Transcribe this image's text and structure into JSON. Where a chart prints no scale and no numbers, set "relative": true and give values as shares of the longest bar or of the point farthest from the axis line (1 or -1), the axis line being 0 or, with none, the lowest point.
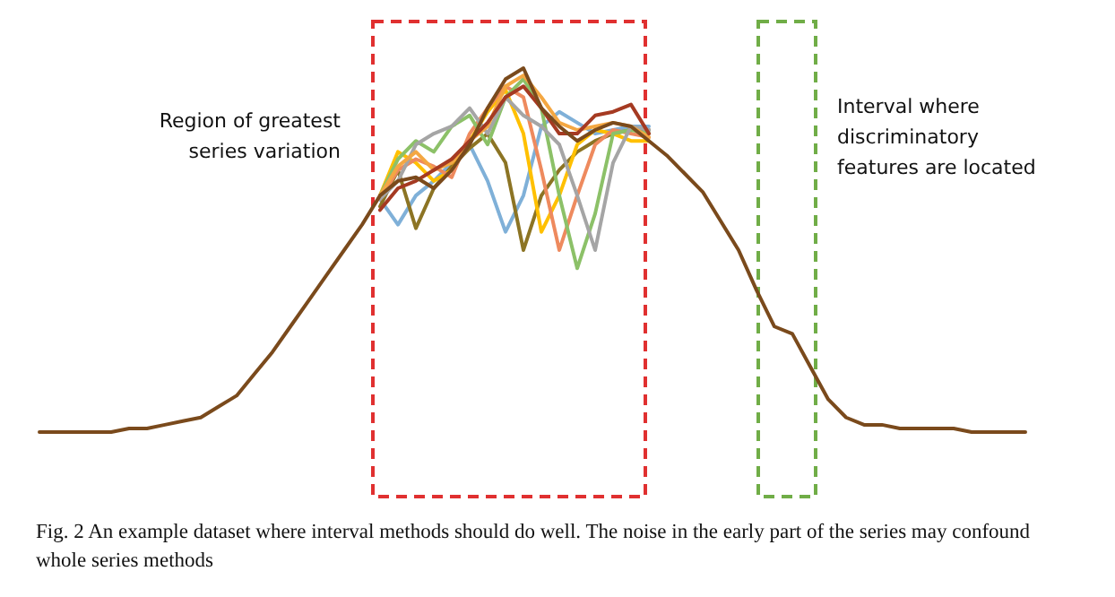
{
  "chart_data": {
    "type": "line",
    "relative": true,
    "tick_labels": false,
    "grid": false,
    "marker": "none",
    "line_style": "solid",
    "categories": [
      null,
      null,
      null,
      null,
      null,
      null,
      null,
      null,
      null,
      null,
      null,
      null,
      null,
      null,
      null,
      null,
      null,
      null,
      null,
      null,
      null,
      null,
      null,
      null,
      null,
      null,
      null,
      null,
      null,
      null,
      null,
      null,
      null,
      null,
      null,
      null,
      null,
      null,
      null,
      null,
      null,
      null,
      null,
      null,
      null,
      null,
      null,
      null,
      null,
      null,
      null,
      null,
      null,
      null,
      null,
      null
    ],
    "series": [
      {
        "color": "#7fb0d8",
        "values": [
          null,
          null,
          null,
          null,
          null,
          null,
          null,
          null,
          null,
          null,
          null,
          null,
          null,
          null,
          null,
          null,
          null,
          null,
          null,
          0.64,
          0.57,
          0.65,
          0.69,
          0.74,
          0.79,
          0.69,
          0.55,
          0.65,
          0.84,
          0.88,
          0.85,
          0.82,
          0.83,
          0.84,
          0.84,
          null,
          null,
          null,
          null,
          null,
          null,
          null,
          null,
          null,
          null,
          null,
          null,
          null,
          null,
          null,
          null,
          null,
          null,
          null,
          null,
          null
        ]
      },
      {
        "color": "#8c7424",
        "values": [
          null,
          null,
          null,
          null,
          null,
          null,
          null,
          null,
          null,
          null,
          null,
          null,
          null,
          null,
          null,
          null,
          null,
          null,
          null,
          0.62,
          0.72,
          0.56,
          0.67,
          0.73,
          0.78,
          0.82,
          0.74,
          0.5,
          0.65,
          0.72,
          0.77,
          0.8,
          0.82,
          0.83,
          0.83,
          null,
          null,
          null,
          null,
          null,
          null,
          null,
          null,
          null,
          null,
          null,
          null,
          null,
          null,
          null,
          null,
          null,
          null,
          null,
          null,
          null
        ]
      },
      {
        "color": "#ffc000",
        "values": [
          null,
          null,
          null,
          null,
          null,
          null,
          null,
          null,
          null,
          null,
          null,
          null,
          null,
          null,
          null,
          null,
          null,
          null,
          null,
          0.65,
          0.77,
          0.74,
          0.69,
          0.72,
          0.8,
          0.88,
          0.94,
          0.82,
          0.55,
          0.65,
          0.79,
          0.83,
          0.82,
          0.8,
          0.8,
          null,
          null,
          null,
          null,
          null,
          null,
          null,
          null,
          null,
          null,
          null,
          null,
          null,
          null,
          null,
          null,
          null,
          null,
          null,
          null,
          null
        ]
      },
      {
        "color": "#ee8a5e",
        "values": [
          null,
          null,
          null,
          null,
          null,
          null,
          null,
          null,
          null,
          null,
          null,
          null,
          null,
          null,
          null,
          null,
          null,
          null,
          null,
          0.64,
          0.72,
          0.75,
          0.73,
          0.7,
          0.82,
          0.89,
          0.95,
          0.92,
          0.72,
          0.5,
          0.65,
          0.79,
          0.83,
          0.82,
          0.81,
          null,
          null,
          null,
          null,
          null,
          null,
          null,
          null,
          null,
          null,
          null,
          null,
          null,
          null,
          null,
          null,
          null,
          null,
          null,
          null,
          null
        ]
      },
      {
        "color": "#8cc168",
        "values": [
          null,
          null,
          null,
          null,
          null,
          null,
          null,
          null,
          null,
          null,
          null,
          null,
          null,
          null,
          null,
          null,
          null,
          null,
          null,
          0.65,
          0.75,
          0.8,
          0.77,
          0.84,
          0.87,
          0.79,
          0.92,
          0.97,
          0.89,
          0.65,
          0.45,
          0.6,
          0.82,
          0.83,
          0.82,
          null,
          null,
          null,
          null,
          null,
          null,
          null,
          null,
          null,
          null,
          null,
          null,
          null,
          null,
          null,
          null,
          null,
          null,
          null,
          null,
          null
        ]
      },
      {
        "color": "#a5a5a5",
        "values": [
          null,
          null,
          null,
          null,
          null,
          null,
          null,
          null,
          null,
          null,
          null,
          null,
          null,
          null,
          null,
          null,
          null,
          null,
          null,
          0.64,
          0.69,
          0.79,
          0.82,
          0.84,
          0.89,
          0.82,
          0.92,
          0.87,
          0.84,
          0.79,
          0.65,
          0.5,
          0.74,
          0.84,
          0.83,
          null,
          null,
          null,
          null,
          null,
          null,
          null,
          null,
          null,
          null,
          null,
          null,
          null,
          null,
          null,
          null,
          null,
          null,
          null,
          null,
          null
        ]
      },
      {
        "color": "#f4a742",
        "values": [
          null,
          null,
          null,
          null,
          null,
          null,
          null,
          null,
          null,
          null,
          null,
          null,
          null,
          null,
          null,
          null,
          null,
          null,
          null,
          0.65,
          0.73,
          0.77,
          0.72,
          0.74,
          0.8,
          0.84,
          0.95,
          0.98,
          0.92,
          0.85,
          0.83,
          0.84,
          0.85,
          0.84,
          0.81,
          null,
          null,
          null,
          null,
          null,
          null,
          null,
          null,
          null,
          null,
          null,
          null,
          null,
          null,
          null,
          null,
          null,
          null,
          null,
          null,
          null
        ]
      },
      {
        "color": "#a53a22",
        "values": [
          null,
          null,
          null,
          null,
          null,
          null,
          null,
          null,
          null,
          null,
          null,
          null,
          null,
          null,
          null,
          null,
          null,
          null,
          null,
          0.61,
          0.67,
          0.69,
          0.72,
          0.75,
          0.8,
          0.85,
          0.92,
          0.95,
          0.89,
          0.82,
          0.82,
          0.87,
          0.88,
          0.9,
          0.82,
          null,
          null,
          null,
          null,
          null,
          null,
          null,
          null,
          null,
          null,
          null,
          null,
          null,
          null,
          null,
          null,
          null,
          null,
          null,
          null,
          null
        ]
      },
      {
        "color": "#7a4a1c",
        "values": [
          0,
          0,
          0,
          0,
          0,
          0.01,
          0.01,
          0.02,
          0.03,
          0.04,
          0.07,
          0.1,
          0.16,
          0.22,
          0.29,
          0.36,
          0.43,
          0.5,
          0.57,
          0.65,
          0.69,
          0.7,
          0.67,
          0.72,
          0.79,
          0.89,
          0.97,
          1,
          0.89,
          0.84,
          0.8,
          0.83,
          0.85,
          0.84,
          0.8,
          0.76,
          0.71,
          0.66,
          0.58,
          0.5,
          0.39,
          0.29,
          0.27,
          0.18,
          0.09,
          0.04,
          0.02,
          0.02,
          0.01,
          0.01,
          0.01,
          0.01,
          0,
          0,
          0,
          0
        ]
      }
    ],
    "annotations": [
      "Region of greatest series variation",
      "Interval where discriminatory features are located",
      "Fig. 2 An example dataset where interval methods should do well. The noise in the early part of the series may confound whole series methods"
    ]
  }
}
